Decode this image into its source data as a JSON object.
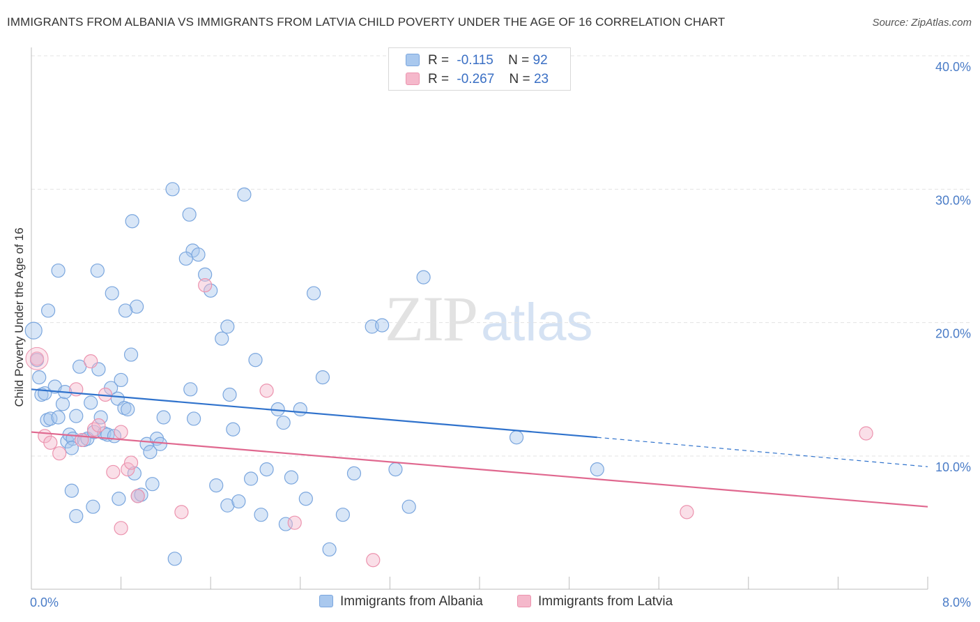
{
  "header": {
    "title": "IMMIGRANTS FROM ALBANIA VS IMMIGRANTS FROM LATVIA CHILD POVERTY UNDER THE AGE OF 16 CORRELATION CHART",
    "source": "Source: ZipAtlas.com"
  },
  "watermark": {
    "zip": "ZIP",
    "atlas": "atlas"
  },
  "legend_top": {
    "rows": [
      {
        "r_label": "R =",
        "r_value": "-0.115",
        "n_label": "N =",
        "n_value": "92",
        "color": "#a9c8ee"
      },
      {
        "r_label": "R =",
        "r_value": "-0.267",
        "n_label": "N =",
        "n_value": "23",
        "color": "#f5b8cb"
      }
    ]
  },
  "legend_bottom": {
    "items": [
      {
        "label": "Immigrants from Albania",
        "color": "#a9c8ee"
      },
      {
        "label": "Immigrants from Latvia",
        "color": "#f5b8cb"
      }
    ]
  },
  "chart_data": {
    "type": "scatter",
    "ylabel": "Child Poverty Under the Age of 16",
    "xlim": [
      0,
      8
    ],
    "ylim": [
      0,
      42
    ],
    "x_tick_labels": [
      {
        "value": 0,
        "label": "0.0%"
      },
      {
        "value": 8,
        "label": "8.0%"
      }
    ],
    "y_tick_labels": [
      {
        "value": 10,
        "label": "10.0%"
      },
      {
        "value": 20,
        "label": "20.0%"
      },
      {
        "value": 30,
        "label": "30.0%"
      },
      {
        "value": 40,
        "label": "40.0%"
      }
    ],
    "grid": true,
    "legend": "top-center",
    "series": [
      {
        "name": "Immigrants from Albania",
        "color": "#a9c8ee",
        "line_color": "#2f72cc",
        "trend": {
          "x0": 0,
          "y0": 15.0,
          "x1": 5.05,
          "y1": 11.4,
          "x_dash_end": 8.0,
          "y_dash_end": 9.2
        },
        "points": [
          [
            0.02,
            19.4
          ],
          [
            0.05,
            17.2
          ],
          [
            0.07,
            15.9
          ],
          [
            0.09,
            14.6
          ],
          [
            0.12,
            14.7
          ],
          [
            0.14,
            12.7
          ],
          [
            0.17,
            12.8
          ],
          [
            0.21,
            15.2
          ],
          [
            0.24,
            12.9
          ],
          [
            0.28,
            13.9
          ],
          [
            0.3,
            14.8
          ],
          [
            0.32,
            11.1
          ],
          [
            0.34,
            11.6
          ],
          [
            0.37,
            11.3
          ],
          [
            0.4,
            13.0
          ],
          [
            0.43,
            16.7
          ],
          [
            0.47,
            11.2
          ],
          [
            0.5,
            11.3
          ],
          [
            0.53,
            14.0
          ],
          [
            0.56,
            11.8
          ],
          [
            0.6,
            16.5
          ],
          [
            0.62,
            12.9
          ],
          [
            0.65,
            11.7
          ],
          [
            0.68,
            11.6
          ],
          [
            0.71,
            15.1
          ],
          [
            0.74,
            11.5
          ],
          [
            0.77,
            14.3
          ],
          [
            0.8,
            15.7
          ],
          [
            0.83,
            13.6
          ],
          [
            0.86,
            13.5
          ],
          [
            0.89,
            17.6
          ],
          [
            0.92,
            8.7
          ],
          [
            0.95,
            7.0
          ],
          [
            0.98,
            7.1
          ],
          [
            1.03,
            10.9
          ],
          [
            1.06,
            10.3
          ],
          [
            1.08,
            7.9
          ],
          [
            1.12,
            11.3
          ],
          [
            1.15,
            10.9
          ],
          [
            1.18,
            12.9
          ],
          [
            0.24,
            23.9
          ],
          [
            0.15,
            20.9
          ],
          [
            0.59,
            23.9
          ],
          [
            0.72,
            22.2
          ],
          [
            0.9,
            27.6
          ],
          [
            0.94,
            21.2
          ],
          [
            0.84,
            20.9
          ],
          [
            1.26,
            30.0
          ],
          [
            1.41,
            28.1
          ],
          [
            1.44,
            25.4
          ],
          [
            1.49,
            25.1
          ],
          [
            1.55,
            23.6
          ],
          [
            1.6,
            22.4
          ],
          [
            1.38,
            24.8
          ],
          [
            1.7,
            18.8
          ],
          [
            1.75,
            19.7
          ],
          [
            1.9,
            29.6
          ],
          [
            2.0,
            17.2
          ],
          [
            1.77,
            14.6
          ],
          [
            1.8,
            12.0
          ],
          [
            1.42,
            15.0
          ],
          [
            1.45,
            12.8
          ],
          [
            1.65,
            7.8
          ],
          [
            1.75,
            6.3
          ],
          [
            1.85,
            6.6
          ],
          [
            1.96,
            8.3
          ],
          [
            2.05,
            5.6
          ],
          [
            2.1,
            9.0
          ],
          [
            2.2,
            13.5
          ],
          [
            2.25,
            12.5
          ],
          [
            2.27,
            4.9
          ],
          [
            2.32,
            8.4
          ],
          [
            2.4,
            13.5
          ],
          [
            2.45,
            6.8
          ],
          [
            2.52,
            22.2
          ],
          [
            2.6,
            15.9
          ],
          [
            2.66,
            3.0
          ],
          [
            2.78,
            5.6
          ],
          [
            2.88,
            8.7
          ],
          [
            3.04,
            19.7
          ],
          [
            3.13,
            19.8
          ],
          [
            3.25,
            9.0
          ],
          [
            3.37,
            6.2
          ],
          [
            3.5,
            23.4
          ],
          [
            4.33,
            11.4
          ],
          [
            5.05,
            9.0
          ],
          [
            0.36,
            10.6
          ],
          [
            0.55,
            6.2
          ],
          [
            0.78,
            6.8
          ],
          [
            1.28,
            2.3
          ],
          [
            0.4,
            5.5
          ],
          [
            0.36,
            7.4
          ]
        ]
      },
      {
        "name": "Immigrants from Latvia",
        "color": "#f5b8cb",
        "line_color": "#e0688f",
        "trend": {
          "x0": 0,
          "y0": 11.8,
          "x1": 8.0,
          "y1": 6.2
        },
        "points": [
          [
            0.05,
            17.3
          ],
          [
            0.12,
            11.5
          ],
          [
            0.17,
            11.0
          ],
          [
            0.25,
            10.2
          ],
          [
            0.4,
            15.0
          ],
          [
            0.45,
            11.2
          ],
          [
            0.53,
            17.1
          ],
          [
            0.56,
            12.0
          ],
          [
            0.6,
            12.3
          ],
          [
            0.66,
            14.6
          ],
          [
            0.73,
            8.8
          ],
          [
            0.8,
            11.8
          ],
          [
            0.86,
            9.0
          ],
          [
            0.89,
            9.5
          ],
          [
            0.95,
            7.0
          ],
          [
            1.34,
            5.8
          ],
          [
            1.55,
            22.8
          ],
          [
            2.1,
            14.9
          ],
          [
            2.35,
            5.0
          ],
          [
            3.05,
            2.2
          ],
          [
            0.8,
            4.6
          ],
          [
            5.85,
            5.8
          ],
          [
            7.45,
            11.7
          ]
        ]
      }
    ]
  }
}
